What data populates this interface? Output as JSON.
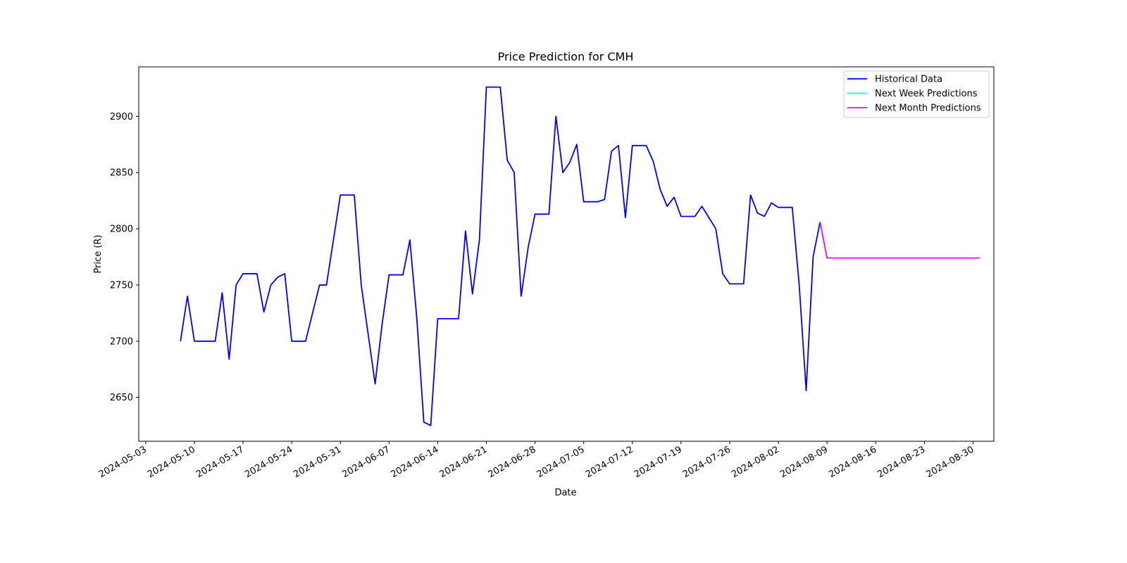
{
  "chart_data": {
    "type": "line",
    "title": "Price Prediction for CMH",
    "xlabel": "Date",
    "ylabel": "Price (R)",
    "xlim": [
      "2024-05-02",
      "2024-09-02"
    ],
    "ylim": [
      2611,
      2944
    ],
    "x_ticks": [
      "2024-05-03",
      "2024-05-10",
      "2024-05-17",
      "2024-05-24",
      "2024-05-31",
      "2024-06-07",
      "2024-06-14",
      "2024-06-21",
      "2024-06-28",
      "2024-07-05",
      "2024-07-12",
      "2024-07-19",
      "2024-07-26",
      "2024-08-02",
      "2024-08-09",
      "2024-08-16",
      "2024-08-23",
      "2024-08-30"
    ],
    "y_ticks": [
      2650,
      2700,
      2750,
      2800,
      2850,
      2900
    ],
    "legend_position": "top-right",
    "grid": false,
    "series": [
      {
        "name": "Historical Data",
        "color": "#0000ff",
        "points": [
          [
            "2024-05-08",
            2700
          ],
          [
            "2024-05-09",
            2740
          ],
          [
            "2024-05-10",
            2700
          ],
          [
            "2024-05-13",
            2700
          ],
          [
            "2024-05-14",
            2743
          ],
          [
            "2024-05-15",
            2684
          ],
          [
            "2024-05-16",
            2750
          ],
          [
            "2024-05-17",
            2760
          ],
          [
            "2024-05-19",
            2760
          ],
          [
            "2024-05-20",
            2726
          ],
          [
            "2024-05-21",
            2750
          ],
          [
            "2024-05-22",
            2757
          ],
          [
            "2024-05-23",
            2760
          ],
          [
            "2024-05-24",
            2700
          ],
          [
            "2024-05-26",
            2700
          ],
          [
            "2024-05-28",
            2750
          ],
          [
            "2024-05-29",
            2750
          ],
          [
            "2024-05-31",
            2830
          ],
          [
            "2024-06-02",
            2830
          ],
          [
            "2024-06-03",
            2750
          ],
          [
            "2024-06-05",
            2662
          ],
          [
            "2024-06-06",
            2715
          ],
          [
            "2024-06-07",
            2759
          ],
          [
            "2024-06-09",
            2759
          ],
          [
            "2024-06-10",
            2790
          ],
          [
            "2024-06-11",
            2720
          ],
          [
            "2024-06-12",
            2628
          ],
          [
            "2024-06-13",
            2625
          ],
          [
            "2024-06-14",
            2720
          ],
          [
            "2024-06-17",
            2720
          ],
          [
            "2024-06-18",
            2798
          ],
          [
            "2024-06-19",
            2742
          ],
          [
            "2024-06-20",
            2790
          ],
          [
            "2024-06-21",
            2926
          ],
          [
            "2024-06-23",
            2926
          ],
          [
            "2024-06-24",
            2861
          ],
          [
            "2024-06-25",
            2850
          ],
          [
            "2024-06-26",
            2740
          ],
          [
            "2024-06-27",
            2783
          ],
          [
            "2024-06-28",
            2813
          ],
          [
            "2024-06-30",
            2813
          ],
          [
            "2024-07-01",
            2900
          ],
          [
            "2024-07-02",
            2850
          ],
          [
            "2024-07-03",
            2859
          ],
          [
            "2024-07-04",
            2875
          ],
          [
            "2024-07-05",
            2824
          ],
          [
            "2024-07-07",
            2824
          ],
          [
            "2024-07-08",
            2826
          ],
          [
            "2024-07-09",
            2869
          ],
          [
            "2024-07-10",
            2874
          ],
          [
            "2024-07-11",
            2810
          ],
          [
            "2024-07-12",
            2874
          ],
          [
            "2024-07-14",
            2874
          ],
          [
            "2024-07-15",
            2860
          ],
          [
            "2024-07-16",
            2835
          ],
          [
            "2024-07-17",
            2820
          ],
          [
            "2024-07-18",
            2828
          ],
          [
            "2024-07-19",
            2811
          ],
          [
            "2024-07-21",
            2811
          ],
          [
            "2024-07-22",
            2820
          ],
          [
            "2024-07-24",
            2800
          ],
          [
            "2024-07-25",
            2760
          ],
          [
            "2024-07-26",
            2751
          ],
          [
            "2024-07-28",
            2751
          ],
          [
            "2024-07-29",
            2830
          ],
          [
            "2024-07-30",
            2814
          ],
          [
            "2024-07-31",
            2811
          ],
          [
            "2024-08-01",
            2823
          ],
          [
            "2024-08-02",
            2819
          ],
          [
            "2024-08-04",
            2819
          ],
          [
            "2024-08-05",
            2750
          ],
          [
            "2024-08-06",
            2656
          ],
          [
            "2024-08-07",
            2775
          ],
          [
            "2024-08-08",
            2806
          ]
        ]
      },
      {
        "name": "Next Week Predictions",
        "color": "#00ffff",
        "points": []
      },
      {
        "name": "Next Month Predictions",
        "color": "#ff00ff",
        "points": [
          [
            "2024-08-08",
            2806
          ],
          [
            "2024-08-09",
            2774
          ],
          [
            "2024-08-31",
            2774
          ]
        ]
      }
    ]
  }
}
